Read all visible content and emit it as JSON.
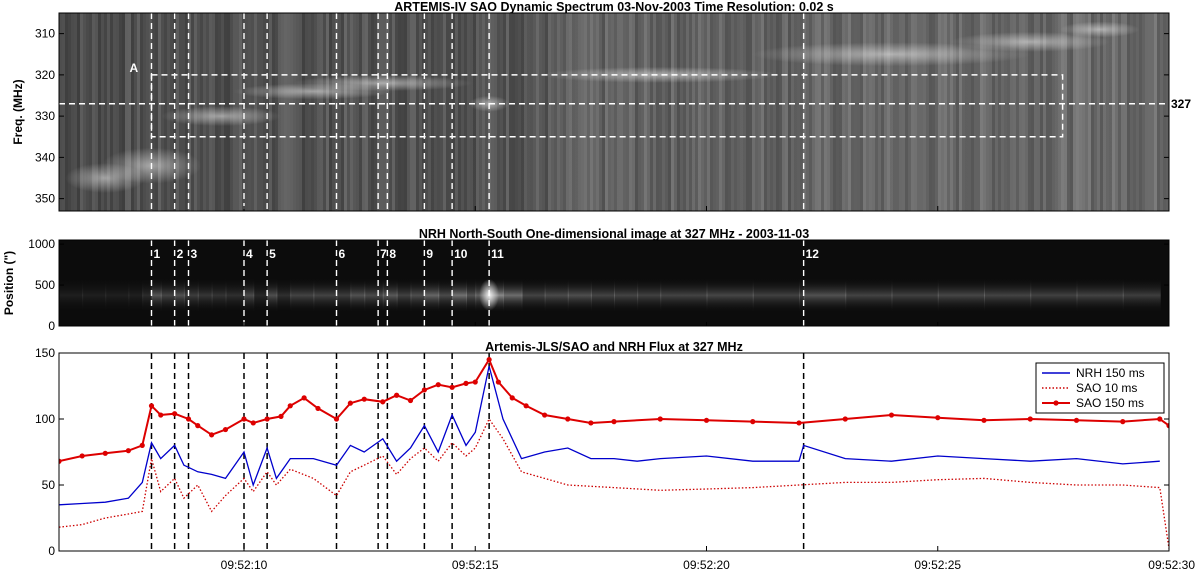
{
  "chart_data": [
    {
      "type": "heatmap",
      "title": "ARTEMIS-IV  SAO Dynamic Spectrum 03-Nov-2003 Time Resolution: 0.02 s",
      "ylabel": "Freq. (MHz)",
      "yticks": [
        "310",
        "320",
        "330",
        "340",
        "350"
      ],
      "yticks_values": [
        310,
        320,
        330,
        340,
        350
      ],
      "ylim": [
        305,
        353
      ],
      "xlim": [
        6.0,
        30.0
      ],
      "annotation_label": "A",
      "box_region": {
        "t_start": 8.0,
        "t_end": 27.7,
        "f_top": 320,
        "f_bottom": 335
      },
      "reference_frequency": 327,
      "reference_label": "327"
    },
    {
      "type": "heatmap",
      "title": "NRH North-South One-dimensional image at 327 MHz  -  2003-11-03",
      "ylabel": "Position (\")",
      "yticks": [
        "1000",
        "500",
        "0"
      ],
      "yticks_values": [
        1000,
        500,
        0
      ],
      "ylim": [
        0,
        1050
      ],
      "xlim": [
        6.0,
        30.0
      ],
      "markers": [
        {
          "label": "1",
          "t": 8.0
        },
        {
          "label": "2",
          "t": 8.5
        },
        {
          "label": "3",
          "t": 8.8
        },
        {
          "label": "4",
          "t": 10.0
        },
        {
          "label": "5",
          "t": 10.5
        },
        {
          "label": "6",
          "t": 12.0
        },
        {
          "label": "7",
          "t": 12.9
        },
        {
          "label": "8",
          "t": 13.1
        },
        {
          "label": "9",
          "t": 13.9
        },
        {
          "label": "10",
          "t": 14.5
        },
        {
          "label": "11",
          "t": 15.3
        },
        {
          "label": "12",
          "t": 22.1
        }
      ]
    },
    {
      "type": "line",
      "title": "Artemis-JLS/SAO and NRH Flux at 327 MHz",
      "ylim": [
        0,
        150
      ],
      "yticks": [
        "0",
        "50",
        "100",
        "150"
      ],
      "yticks_values": [
        0,
        50,
        100,
        150
      ],
      "xlim": [
        6.0,
        30.0
      ],
      "xticks": [
        "09:52:10",
        "09:52:15",
        "09:52:20",
        "09:52:25",
        "09:52:30"
      ],
      "xticks_values": [
        10,
        15,
        20,
        25,
        30
      ],
      "legend_position": "top-right",
      "series": [
        {
          "name": "NRH 150 ms",
          "color": "#0000cc",
          "style": "solid",
          "x": [
            6.0,
            6.5,
            7.0,
            7.5,
            7.8,
            8.0,
            8.2,
            8.5,
            8.7,
            9.0,
            9.3,
            9.6,
            10.0,
            10.2,
            10.5,
            10.7,
            11.0,
            11.5,
            12.0,
            12.3,
            12.6,
            13.0,
            13.3,
            13.6,
            13.9,
            14.2,
            14.5,
            14.8,
            15.0,
            15.3,
            15.6,
            16.0,
            16.5,
            17.0,
            17.5,
            18.0,
            18.5,
            19.0,
            20.0,
            21.0,
            22.0,
            22.1,
            23.0,
            24.0,
            25.0,
            26.0,
            27.0,
            28.0,
            29.0,
            29.8
          ],
          "y": [
            35,
            36,
            37,
            40,
            52,
            82,
            70,
            80,
            65,
            60,
            58,
            55,
            75,
            50,
            78,
            55,
            70,
            70,
            65,
            80,
            75,
            85,
            68,
            78,
            95,
            75,
            103,
            80,
            90,
            140,
            100,
            70,
            75,
            78,
            70,
            70,
            68,
            70,
            72,
            68,
            68,
            80,
            70,
            68,
            72,
            70,
            68,
            70,
            66,
            68
          ]
        },
        {
          "name": "SAO 10 ms",
          "color": "#cc0000",
          "style": "dotted",
          "x": [
            6.0,
            6.5,
            7.0,
            7.5,
            7.8,
            8.0,
            8.2,
            8.5,
            8.7,
            9.0,
            9.3,
            9.6,
            10.0,
            10.2,
            10.5,
            10.7,
            11.0,
            11.5,
            12.0,
            12.3,
            12.6,
            13.0,
            13.3,
            13.6,
            13.9,
            14.2,
            14.5,
            14.8,
            15.0,
            15.3,
            15.6,
            16.0,
            16.5,
            17.0,
            18.0,
            19.0,
            20.0,
            21.0,
            22.0,
            23.0,
            24.0,
            25.0,
            26.0,
            27.0,
            28.0,
            29.0,
            29.8,
            30.0
          ],
          "y": [
            18,
            20,
            25,
            28,
            30,
            70,
            45,
            55,
            40,
            50,
            30,
            42,
            55,
            45,
            60,
            50,
            62,
            55,
            42,
            60,
            65,
            72,
            58,
            70,
            78,
            68,
            82,
            72,
            78,
            100,
            85,
            60,
            55,
            50,
            48,
            46,
            47,
            48,
            50,
            52,
            52,
            54,
            55,
            52,
            50,
            50,
            48,
            2
          ]
        },
        {
          "name": "SAO 150 ms",
          "color": "#dd0000",
          "style": "solid-dots",
          "x": [
            6.0,
            6.5,
            7.0,
            7.5,
            7.8,
            8.0,
            8.2,
            8.5,
            8.8,
            9.0,
            9.3,
            9.6,
            10.0,
            10.2,
            10.5,
            10.8,
            11.0,
            11.3,
            11.6,
            12.0,
            12.3,
            12.6,
            13.0,
            13.3,
            13.6,
            13.9,
            14.2,
            14.5,
            14.8,
            15.0,
            15.3,
            15.5,
            15.8,
            16.1,
            16.5,
            17.0,
            17.5,
            18.0,
            19.0,
            20.0,
            21.0,
            22.0,
            23.0,
            24.0,
            25.0,
            26.0,
            27.0,
            28.0,
            29.0,
            29.8,
            30.0
          ],
          "y": [
            68,
            72,
            74,
            76,
            80,
            110,
            103,
            104,
            100,
            95,
            88,
            92,
            100,
            97,
            100,
            102,
            110,
            116,
            108,
            100,
            112,
            115,
            113,
            118,
            114,
            122,
            126,
            124,
            127,
            128,
            145,
            128,
            116,
            110,
            103,
            100,
            97,
            98,
            100,
            99,
            98,
            97,
            100,
            103,
            101,
            99,
            100,
            99,
            98,
            100,
            95
          ]
        }
      ]
    }
  ]
}
